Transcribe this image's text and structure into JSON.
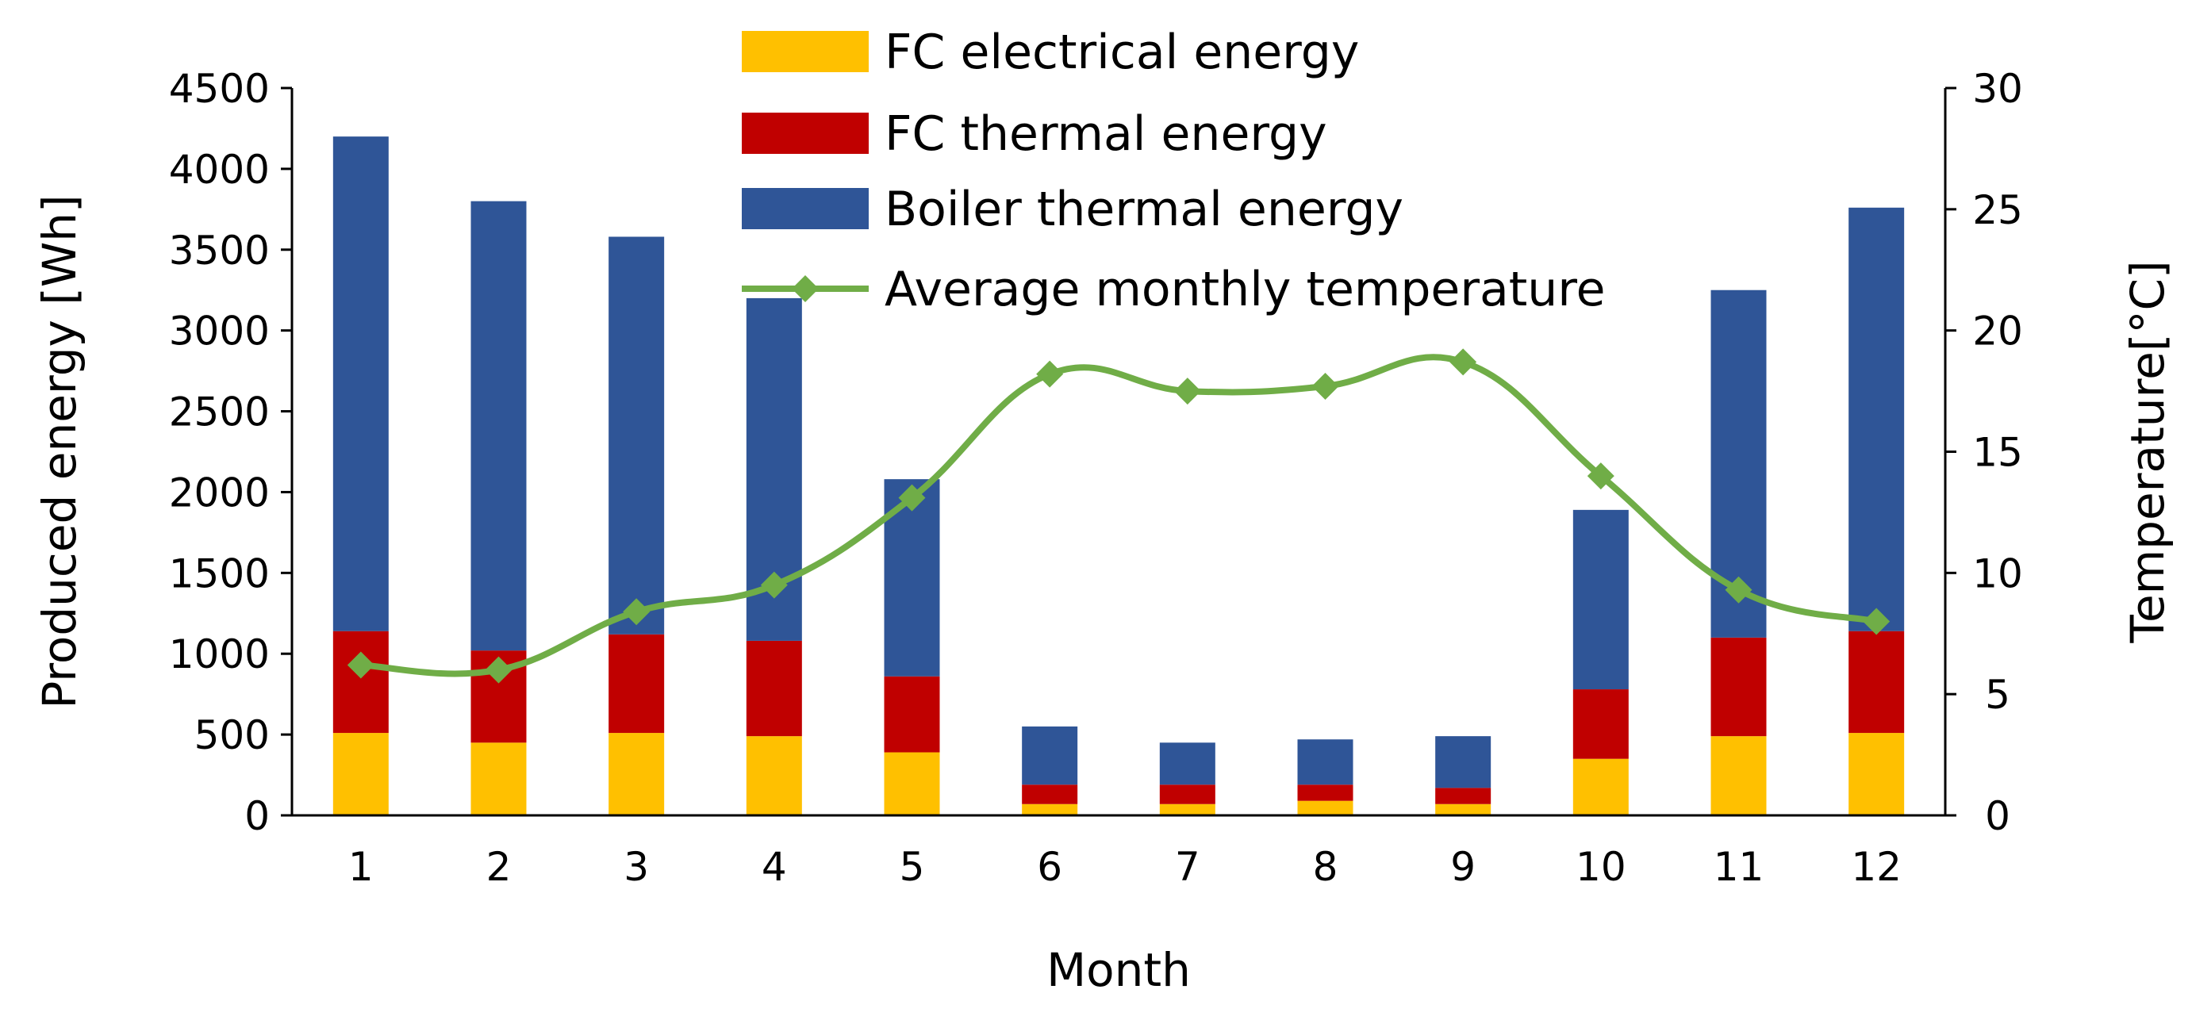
{
  "chart_data": {
    "type": "bar",
    "stacked": true,
    "categories": [
      "1",
      "2",
      "3",
      "4",
      "5",
      "6",
      "7",
      "8",
      "9",
      "10",
      "11",
      "12"
    ],
    "series": [
      {
        "name": "FC electrical energy",
        "kind": "bar",
        "axis": "left",
        "color": "#FFC000",
        "values": [
          510,
          450,
          510,
          490,
          390,
          70,
          70,
          90,
          70,
          350,
          490,
          510
        ]
      },
      {
        "name": "FC thermal energy",
        "kind": "bar",
        "axis": "left",
        "color": "#C00000",
        "values": [
          630,
          570,
          610,
          590,
          470,
          120,
          120,
          100,
          100,
          430,
          610,
          630
        ]
      },
      {
        "name": "Boiler thermal energy",
        "kind": "bar",
        "axis": "left",
        "color": "#2F5597",
        "values": [
          3060,
          2780,
          2460,
          2120,
          1220,
          360,
          260,
          280,
          320,
          1110,
          2150,
          2620
        ]
      },
      {
        "name": "Average monthly temperature",
        "kind": "line",
        "axis": "right",
        "color": "#70AD47",
        "marker": "diamond",
        "values": [
          6.2,
          6.0,
          8.4,
          9.5,
          13.1,
          18.2,
          17.5,
          17.7,
          18.7,
          14.0,
          9.3,
          8.0
        ]
      }
    ],
    "xlabel": "Month",
    "ylabel": "Produced energy [Wh]",
    "ylabel_right": "Temperature[°C]",
    "ylim": [
      0,
      4500
    ],
    "yticks": [
      "0",
      "500",
      "1000",
      "1500",
      "2000",
      "2500",
      "3000",
      "3500",
      "4000",
      "4500"
    ],
    "ylim_right": [
      0,
      30
    ],
    "yticks_right": [
      "0",
      "5",
      "10",
      "15",
      "20",
      "25",
      "30"
    ],
    "grid": false,
    "legend_position": "top-center"
  }
}
